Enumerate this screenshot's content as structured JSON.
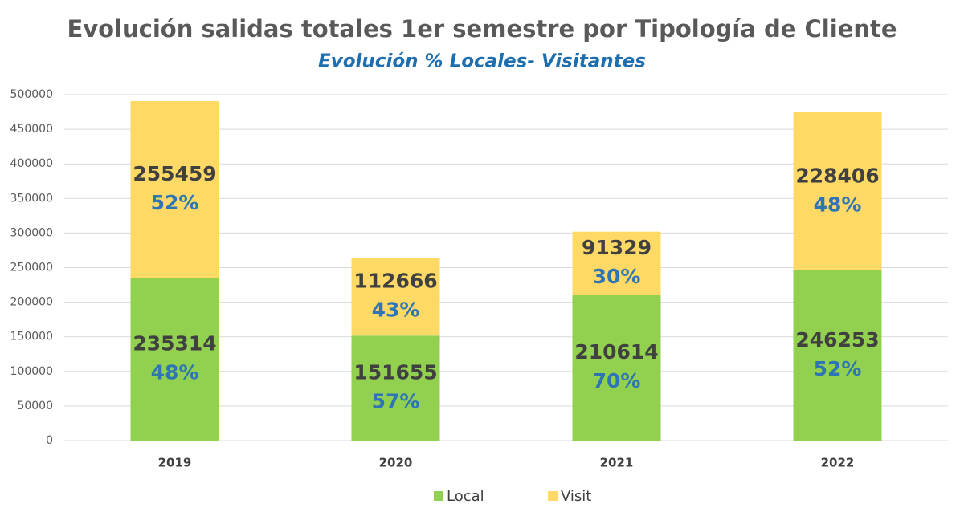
{
  "chart_data": {
    "type": "stacked_bar",
    "title": "Evolución salidas totales 1er semestre por Tipología de Cliente",
    "subtitle": "Evolución % Locales- Visitantes",
    "categories": [
      "2019",
      "2020",
      "2021",
      "2022"
    ],
    "series": [
      {
        "name": "Local",
        "color": "#92d050",
        "values": [
          235314,
          151655,
          210614,
          246253
        ],
        "share_labels": [
          "48%",
          "57%",
          "70%",
          "52%"
        ]
      },
      {
        "name": "Visit",
        "color": "#ffd966",
        "values": [
          255459,
          112666,
          91329,
          228406
        ],
        "share_labels": [
          "52%",
          "43%",
          "30%",
          "48%"
        ]
      }
    ],
    "ylim": [
      0,
      500000
    ],
    "yticks": [
      0,
      50000,
      100000,
      150000,
      200000,
      250000,
      300000,
      350000,
      400000,
      450000,
      500000
    ],
    "grid": true,
    "legend": "bottom"
  }
}
